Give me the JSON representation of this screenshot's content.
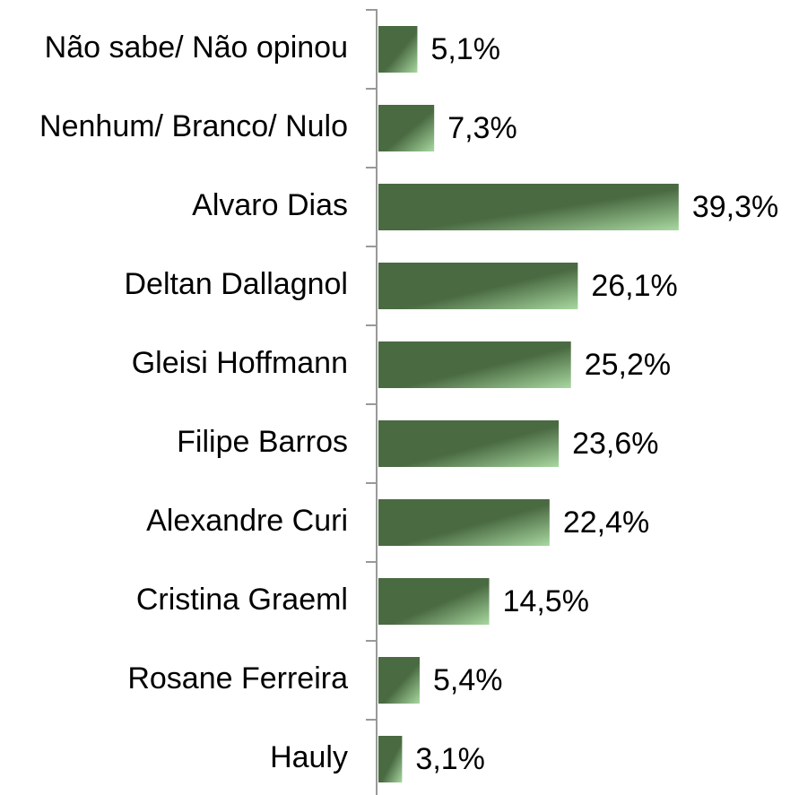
{
  "chart_data": {
    "type": "barh",
    "categories": [
      "Não sabe/ Não opinou",
      "Nenhum/ Branco/ Nulo",
      "Alvaro Dias",
      "Deltan Dallagnol",
      "Gleisi Hoffmann",
      "Filipe Barros",
      "Alexandre Curi",
      "Cristina Graeml",
      "Rosane Ferreira",
      "Hauly"
    ],
    "values": [
      5.1,
      7.3,
      39.3,
      26.1,
      25.2,
      23.6,
      22.4,
      14.5,
      5.4,
      3.1
    ],
    "value_labels": [
      "5,1%",
      "7,3%",
      "39,3%",
      "26,1%",
      "25,2%",
      "23,6%",
      "22,4%",
      "14,5%",
      "5,4%",
      "3,1%"
    ],
    "color": "#4a6a42"
  }
}
